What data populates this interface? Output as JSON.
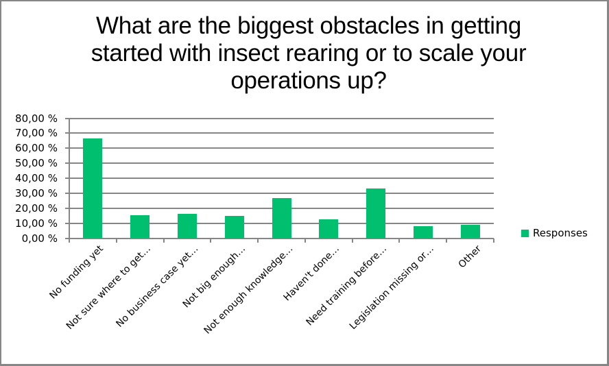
{
  "chart_data": {
    "type": "bar",
    "title": "What are the biggest obstacles in getting started with insect rearing or to scale your operations up?",
    "title_lines": [
      "What are the biggest obstacles in getting",
      "started with insect rearing or to scale your",
      "operations up?"
    ],
    "xlabel": "",
    "ylabel": "",
    "categories": [
      "No funding yet",
      "Not sure where to get…",
      "No business case yet…",
      "Not big enough…",
      "Not enough knowledge…",
      "Haven't done…",
      "Need training before…",
      "Legislation missing or…",
      "Other"
    ],
    "series": [
      {
        "name": "Responses",
        "color": "#00BF6F",
        "values": [
          66.3,
          15.3,
          16.3,
          14.9,
          26.9,
          12.6,
          33.3,
          8.0,
          8.9
        ]
      }
    ],
    "ylim": [
      0,
      80
    ],
    "yticks": [
      0,
      10,
      20,
      30,
      40,
      50,
      60,
      70,
      80
    ],
    "ytick_labels": [
      "0,00 %",
      "10,00 %",
      "20,00 %",
      "30,00 %",
      "40,00 %",
      "50,00 %",
      "60,00 %",
      "70,00 %",
      "80,00 %"
    ],
    "grid": true,
    "legend_position": "right"
  },
  "legend": {
    "label": "Responses",
    "color": "#00BF6F"
  },
  "colors": {
    "bar": "#00BF6F",
    "grid": "#868686",
    "border": "#868686"
  }
}
